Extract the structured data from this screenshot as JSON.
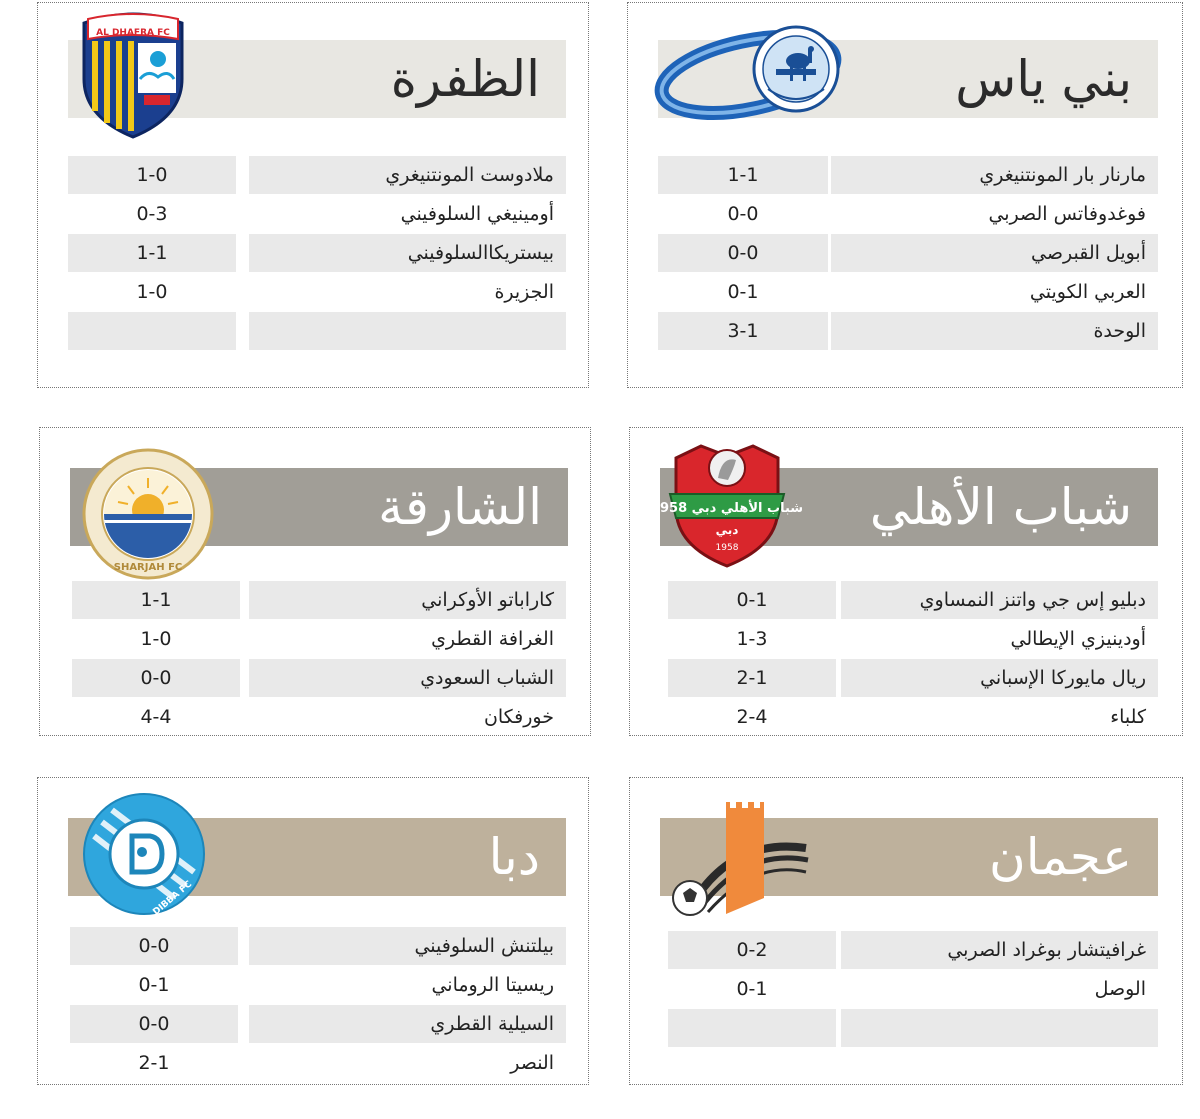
{
  "colors": {
    "banner_light": "#e8e7e2",
    "banner_grey": "#a19e97",
    "banner_tan": "#beb19c",
    "row_shade": "#e9e9e9",
    "title_dark": "#2b2b2b",
    "title_light": "#ffffff"
  },
  "panels": {
    "baniyas": {
      "title": "بني ياس",
      "logo_icon": "baniyas-club-logo",
      "rows": [
        {
          "team": "مارنار بار المونتنيغري",
          "score": "1-1"
        },
        {
          "team": "فوغدوفاتس الصربي",
          "score": "0-0"
        },
        {
          "team": "أبويل القبرصي",
          "score": "0-0"
        },
        {
          "team": "العربي الكويتي",
          "score": "0-1"
        },
        {
          "team": "الوحدة",
          "score": "3-1"
        }
      ]
    },
    "dhafra": {
      "title": "الظفرة",
      "logo_icon": "al-dhafra-club-logo",
      "logo_text": "AL DHAFRA FC",
      "rows": [
        {
          "team": "ملادوست المونتنيغري",
          "score": "1-0"
        },
        {
          "team": "أومينيغي السلوفيني",
          "score": "0-3"
        },
        {
          "team": "بيستريكاالسلوفيني",
          "score": "1-1"
        },
        {
          "team": "الجزيرة",
          "score": "1-0"
        },
        {
          "team": "",
          "score": ""
        }
      ]
    },
    "shabab": {
      "title": "شباب الأهلي",
      "logo_icon": "shabab-al-ahli-club-logo",
      "logo_text": "شباب الأهلي دبي 1958",
      "rows": [
        {
          "team": "دبليو إس جي واتنز النمساوي",
          "score": "0-1"
        },
        {
          "team": "أودينيزي الإيطالي",
          "score": "1-3"
        },
        {
          "team": "ريال مايوركا الإسباني",
          "score": "2-1"
        },
        {
          "team": "كلباء",
          "score": "2-4"
        }
      ]
    },
    "sharjah": {
      "title": "الشارقة",
      "logo_icon": "sharjah-club-logo",
      "logo_text": "SHARJAH FC",
      "rows": [
        {
          "team": "كاراباتو الأوكراني",
          "score": "1-1"
        },
        {
          "team": "الغرافة القطري",
          "score": "1-0"
        },
        {
          "team": "الشباب السعودي",
          "score": "0-0"
        },
        {
          "team": "خورفكان",
          "score": "4-4"
        }
      ]
    },
    "ajman": {
      "title": "عجمان",
      "logo_icon": "ajman-club-logo",
      "rows": [
        {
          "team": "غرافيتشار بوغراد الصربي",
          "score": "0-2"
        },
        {
          "team": "الوصل",
          "score": "0-1"
        },
        {
          "team": "",
          "score": ""
        }
      ]
    },
    "dibba": {
      "title": "دبا",
      "logo_icon": "dibba-club-logo",
      "logo_text": "DIBBA FC",
      "rows": [
        {
          "team": "بيلتنش السلوفيني",
          "score": "0-0"
        },
        {
          "team": "ريسيتا الروماني",
          "score": "0-1"
        },
        {
          "team": "السيلية القطري",
          "score": "0-0"
        },
        {
          "team": "النصر",
          "score": "2-1"
        }
      ]
    }
  }
}
